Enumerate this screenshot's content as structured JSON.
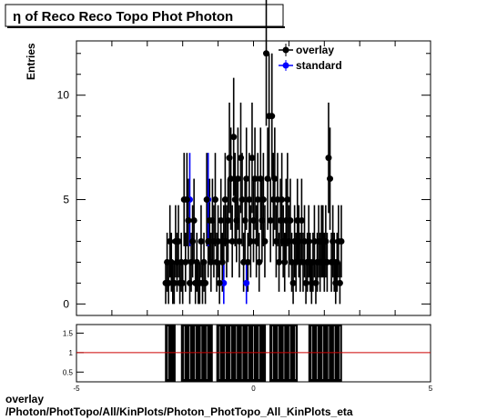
{
  "title": "η of Reco Reco Topo Phot Photon",
  "footer": {
    "line1": "overlay",
    "line2": "/Photon/PhotTopo/All/KinPlots/Photon_PhotTopo_All_KinPlots_eta"
  },
  "colors": {
    "overlay": "#000000",
    "standard": "#0000ff",
    "ratio_line": "#cc0000"
  },
  "chart_data": [
    {
      "type": "scatter",
      "title": "η of Reco Reco Topo Phot Photon",
      "ylabel": "Entries",
      "xlabel": "",
      "xlim": [
        -5,
        5
      ],
      "ylim": [
        -0.55,
        12.6
      ],
      "yticks": [
        0,
        5,
        10
      ],
      "legend": {
        "placement": "top-right",
        "entries": [
          "overlay",
          "standard"
        ]
      },
      "series": [
        {
          "name": "overlay",
          "marker": "circle",
          "x": [
            -2.48,
            -2.44,
            -2.4,
            -2.36,
            -2.32,
            -2.28,
            -2.24,
            -2.2,
            -2.16,
            -2.12,
            -2.08,
            -2.04,
            -2.0,
            -1.96,
            -1.92,
            -1.88,
            -1.84,
            -1.8,
            -1.76,
            -1.72,
            -1.68,
            -1.64,
            -1.6,
            -1.56,
            -1.52,
            -1.48,
            -1.44,
            -1.4,
            -1.36,
            -1.32,
            -1.28,
            -1.24,
            -1.2,
            -1.16,
            -1.12,
            -1.08,
            -1.04,
            -1.0,
            -0.96,
            -0.92,
            -0.88,
            -0.84,
            -0.8,
            -0.76,
            -0.72,
            -0.68,
            -0.64,
            -0.6,
            -0.56,
            -0.52,
            -0.48,
            -0.44,
            -0.4,
            -0.36,
            -0.32,
            -0.28,
            -0.24,
            -0.2,
            -0.16,
            -0.12,
            -0.08,
            -0.04,
            0.0,
            0.04,
            0.08,
            0.12,
            0.16,
            0.2,
            0.24,
            0.28,
            0.32,
            0.36,
            0.4,
            0.44,
            0.48,
            0.52,
            0.56,
            0.6,
            0.64,
            0.68,
            0.72,
            0.76,
            0.8,
            0.84,
            0.88,
            0.92,
            0.96,
            1.0,
            1.04,
            1.08,
            1.12,
            1.16,
            1.2,
            1.24,
            1.28,
            1.32,
            1.36,
            1.4,
            1.44,
            1.48,
            1.52,
            1.56,
            1.6,
            1.64,
            1.68,
            1.72,
            1.76,
            1.8,
            1.84,
            1.88,
            1.92,
            1.96,
            2.0,
            2.04,
            2.08,
            2.12,
            2.16,
            2.2,
            2.24,
            2.28,
            2.32,
            2.36,
            2.4,
            2.44,
            2.48
          ],
          "values": [
            1,
            2,
            1,
            3,
            2,
            1,
            1,
            3,
            2,
            3,
            1,
            2,
            1,
            5,
            2,
            5,
            4,
            1,
            2,
            3,
            4,
            1,
            2,
            1,
            1,
            3,
            1,
            2,
            1,
            5,
            3,
            4,
            2,
            4,
            3,
            5,
            2,
            3,
            1,
            4,
            2,
            3,
            5,
            3,
            4,
            7,
            6,
            3,
            8,
            5,
            4,
            6,
            3,
            7,
            5,
            2,
            4,
            6,
            2,
            5,
            3,
            7,
            4,
            6,
            3,
            5,
            2,
            6,
            4,
            5,
            3,
            12,
            6,
            9,
            4,
            9,
            5,
            6,
            3,
            5,
            2,
            4,
            5,
            3,
            2,
            4,
            5,
            3,
            4,
            2,
            1,
            3,
            2,
            4,
            3,
            2,
            4,
            2,
            3,
            1,
            2,
            3,
            2,
            1,
            2,
            3,
            1,
            2,
            3,
            2,
            3,
            3,
            2,
            3,
            2,
            7,
            6,
            2,
            3,
            2,
            1,
            2,
            3,
            1,
            3
          ]
        },
        {
          "name": "standard",
          "marker": "circle",
          "x": [
            -1.8,
            -1.28,
            -0.84,
            -0.2
          ],
          "values": [
            5,
            5,
            1,
            1
          ]
        }
      ]
    },
    {
      "type": "ratio",
      "xlim": [
        -5,
        5
      ],
      "ylim": [
        0.25,
        1.72
      ],
      "yticks": [
        0.5,
        1,
        1.5
      ],
      "xticks": [
        -5,
        0,
        5
      ],
      "reference_line": 1,
      "filled_ranges": [
        [
          -2.5,
          -2.2
        ],
        [
          -2.05,
          -1.15
        ],
        [
          -1.05,
          0.35
        ],
        [
          0.45,
          1.25
        ],
        [
          1.55,
          2.5
        ]
      ]
    }
  ]
}
